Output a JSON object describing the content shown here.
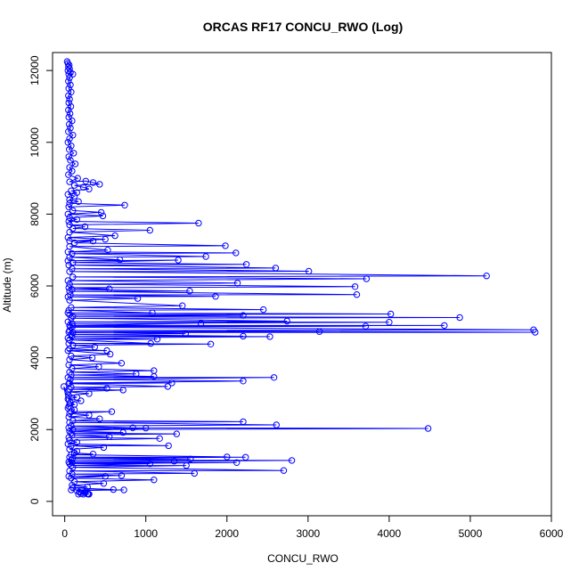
{
  "chart_data": {
    "type": "scatter",
    "title": "ORCAS RF17 CONCU_RWO (Log)",
    "xlabel": "CONCU_RWO",
    "ylabel": "Altitude (m)",
    "xlim": [
      -150,
      6000
    ],
    "ylim": [
      -400,
      12500
    ],
    "xticks": [
      0,
      1000,
      2000,
      3000,
      4000,
      5000,
      6000
    ],
    "yticks": [
      0,
      2000,
      4000,
      6000,
      8000,
      10000,
      12000
    ],
    "grid": false,
    "legend": "none",
    "style": "points connected by lines (type b), open circles",
    "series_color": "#0000ff",
    "series": [
      {
        "points": [
          [
            30,
            12250
          ],
          [
            40,
            12200
          ],
          [
            55,
            12150
          ],
          [
            45,
            12100
          ],
          [
            60,
            12050
          ],
          [
            40,
            12000
          ],
          [
            70,
            11950
          ],
          [
            50,
            11900
          ],
          [
            100,
            11900
          ],
          [
            60,
            11800
          ],
          [
            45,
            11700
          ],
          [
            70,
            11600
          ],
          [
            50,
            11500
          ],
          [
            80,
            11400
          ],
          [
            45,
            11300
          ],
          [
            60,
            11200
          ],
          [
            50,
            11100
          ],
          [
            75,
            11000
          ],
          [
            45,
            10900
          ],
          [
            65,
            10800
          ],
          [
            50,
            10700
          ],
          [
            90,
            10600
          ],
          [
            55,
            10500
          ],
          [
            70,
            10400
          ],
          [
            45,
            10300
          ],
          [
            100,
            10200
          ],
          [
            60,
            10100
          ],
          [
            40,
            10000
          ],
          [
            80,
            9900
          ],
          [
            55,
            9800
          ],
          [
            110,
            9700
          ],
          [
            50,
            9600
          ],
          [
            70,
            9500
          ],
          [
            130,
            9400
          ],
          [
            60,
            9300
          ],
          [
            90,
            9200
          ],
          [
            45,
            9100
          ],
          [
            160,
            9000
          ],
          [
            60,
            8900
          ],
          [
            260,
            8920
          ],
          [
            350,
            8880
          ],
          [
            430,
            8830
          ],
          [
            120,
            8800
          ],
          [
            230,
            8750
          ],
          [
            300,
            8700
          ],
          [
            80,
            8650
          ],
          [
            150,
            8600
          ],
          [
            40,
            8550
          ],
          [
            120,
            8500
          ],
          [
            60,
            8400
          ],
          [
            170,
            8350
          ],
          [
            60,
            8300
          ],
          [
            740,
            8250
          ],
          [
            50,
            8200
          ],
          [
            100,
            8100
          ],
          [
            450,
            8050
          ],
          [
            40,
            8000
          ],
          [
            470,
            7950
          ],
          [
            60,
            7900
          ],
          [
            150,
            7850
          ],
          [
            50,
            7800
          ],
          [
            1650,
            7750
          ],
          [
            60,
            7700
          ],
          [
            250,
            7650
          ],
          [
            100,
            7600
          ],
          [
            1050,
            7550
          ],
          [
            60,
            7500
          ],
          [
            620,
            7400
          ],
          [
            40,
            7350
          ],
          [
            500,
            7300
          ],
          [
            60,
            7250
          ],
          [
            350,
            7250
          ],
          [
            120,
            7200
          ],
          [
            1980,
            7120
          ],
          [
            60,
            7100
          ],
          [
            530,
            7000
          ],
          [
            40,
            6950
          ],
          [
            2110,
            6920
          ],
          [
            90,
            6900
          ],
          [
            1740,
            6820
          ],
          [
            60,
            6800
          ],
          [
            680,
            6730
          ],
          [
            40,
            6700
          ],
          [
            1400,
            6720
          ],
          [
            100,
            6650
          ],
          [
            2240,
            6600
          ],
          [
            50,
            6580
          ],
          [
            2600,
            6500
          ],
          [
            90,
            6480
          ],
          [
            3010,
            6410
          ],
          [
            60,
            6400
          ],
          [
            5200,
            6280
          ],
          [
            100,
            6250
          ],
          [
            3720,
            6200
          ],
          [
            40,
            6150
          ],
          [
            2130,
            6080
          ],
          [
            60,
            6050
          ],
          [
            3580,
            5980
          ],
          [
            50,
            5950
          ],
          [
            550,
            5920
          ],
          [
            90,
            5900
          ],
          [
            1540,
            5860
          ],
          [
            60,
            5850
          ],
          [
            3600,
            5760
          ],
          [
            70,
            5750
          ],
          [
            1860,
            5710
          ],
          [
            40,
            5700
          ],
          [
            900,
            5650
          ],
          [
            60,
            5600
          ],
          [
            1450,
            5450
          ],
          [
            80,
            5400
          ],
          [
            2450,
            5340
          ],
          [
            50,
            5320
          ],
          [
            1080,
            5250
          ],
          [
            40,
            5250
          ],
          [
            4020,
            5220
          ],
          [
            60,
            5200
          ],
          [
            2200,
            5180
          ],
          [
            100,
            5150
          ],
          [
            4870,
            5120
          ],
          [
            80,
            5100
          ],
          [
            2740,
            5020
          ],
          [
            40,
            5000
          ],
          [
            4000,
            4990
          ],
          [
            90,
            4950
          ],
          [
            1680,
            4960
          ],
          [
            60,
            4900
          ],
          [
            4680,
            4900
          ],
          [
            100,
            4880
          ],
          [
            3710,
            4880
          ],
          [
            70,
            4850
          ],
          [
            5780,
            4780
          ],
          [
            60,
            4760
          ],
          [
            5800,
            4710
          ],
          [
            100,
            4700
          ],
          [
            3140,
            4730
          ],
          [
            50,
            4720
          ],
          [
            1490,
            4670
          ],
          [
            80,
            4650
          ],
          [
            2200,
            4600
          ],
          [
            90,
            4600
          ],
          [
            2530,
            4590
          ],
          [
            40,
            4550
          ],
          [
            1140,
            4520
          ],
          [
            60,
            4500
          ],
          [
            1060,
            4400
          ],
          [
            50,
            4400
          ],
          [
            1800,
            4380
          ],
          [
            100,
            4350
          ],
          [
            370,
            4300
          ],
          [
            60,
            4250
          ],
          [
            520,
            4200
          ],
          [
            40,
            4200
          ],
          [
            560,
            4100
          ],
          [
            80,
            4050
          ],
          [
            340,
            4000
          ],
          [
            60,
            3950
          ],
          [
            700,
            3850
          ],
          [
            50,
            3800
          ],
          [
            420,
            3750
          ],
          [
            90,
            3700
          ],
          [
            1100,
            3640
          ],
          [
            60,
            3600
          ],
          [
            880,
            3550
          ],
          [
            80,
            3520
          ],
          [
            1100,
            3480
          ],
          [
            40,
            3450
          ],
          [
            2580,
            3450
          ],
          [
            70,
            3400
          ],
          [
            2200,
            3350
          ],
          [
            60,
            3300
          ],
          [
            1320,
            3300
          ],
          [
            50,
            3280
          ],
          [
            1270,
            3200
          ],
          [
            80,
            3180
          ],
          [
            520,
            3150
          ],
          [
            60,
            3120
          ],
          [
            720,
            3100
          ],
          [
            40,
            3050
          ],
          [
            300,
            3000
          ],
          [
            50,
            2950
          ],
          [
            150,
            2900
          ],
          [
            40,
            2850
          ],
          [
            200,
            2800
          ],
          [
            70,
            2750
          ],
          [
            120,
            2700
          ],
          [
            50,
            2650
          ],
          [
            40,
            2600
          ],
          [
            -10,
            3200
          ],
          [
            120,
            2550
          ],
          [
            80,
            2500
          ],
          [
            580,
            2500
          ],
          [
            60,
            2450
          ],
          [
            300,
            2400
          ],
          [
            50,
            2350
          ],
          [
            430,
            2300
          ],
          [
            100,
            2250
          ],
          [
            2200,
            2220
          ],
          [
            60,
            2200
          ],
          [
            2610,
            2130
          ],
          [
            80,
            2100
          ],
          [
            840,
            2050
          ],
          [
            50,
            2050
          ],
          [
            4480,
            2030
          ],
          [
            100,
            2000
          ],
          [
            1000,
            2040
          ],
          [
            60,
            1950
          ],
          [
            720,
            1920
          ],
          [
            80,
            1900
          ],
          [
            1380,
            1880
          ],
          [
            90,
            1850
          ],
          [
            550,
            1800
          ],
          [
            50,
            1780
          ],
          [
            1170,
            1750
          ],
          [
            60,
            1700
          ],
          [
            150,
            1650
          ],
          [
            40,
            1600
          ],
          [
            1280,
            1550
          ],
          [
            80,
            1550
          ],
          [
            480,
            1500
          ],
          [
            60,
            1450
          ],
          [
            150,
            1400
          ],
          [
            120,
            1350
          ],
          [
            350,
            1320
          ],
          [
            80,
            1300
          ],
          [
            2000,
            1240
          ],
          [
            60,
            1230
          ],
          [
            2230,
            1230
          ],
          [
            100,
            1200
          ],
          [
            1550,
            1180
          ],
          [
            80,
            1150
          ],
          [
            2800,
            1140
          ],
          [
            50,
            1100
          ],
          [
            1350,
            1120
          ],
          [
            90,
            1080
          ],
          [
            2120,
            1080
          ],
          [
            60,
            1050
          ],
          [
            1050,
            1050
          ],
          [
            80,
            1000
          ],
          [
            1500,
            1000
          ],
          [
            100,
            950
          ],
          [
            2700,
            860
          ],
          [
            60,
            850
          ],
          [
            1600,
            780
          ],
          [
            90,
            760
          ],
          [
            700,
            720
          ],
          [
            50,
            700
          ],
          [
            500,
            700
          ],
          [
            80,
            650
          ],
          [
            1100,
            600
          ],
          [
            120,
            550
          ],
          [
            480,
            500
          ],
          [
            90,
            450
          ],
          [
            280,
            400
          ],
          [
            100,
            380
          ],
          [
            600,
            330
          ],
          [
            80,
            320
          ],
          [
            730,
            320
          ],
          [
            150,
            300
          ],
          [
            260,
            280
          ],
          [
            180,
            260
          ],
          [
            250,
            240
          ],
          [
            200,
            220
          ],
          [
            280,
            210
          ],
          [
            170,
            200
          ],
          [
            290,
            200
          ],
          [
            230,
            200
          ],
          [
            300,
            200
          ]
        ]
      }
    ]
  }
}
